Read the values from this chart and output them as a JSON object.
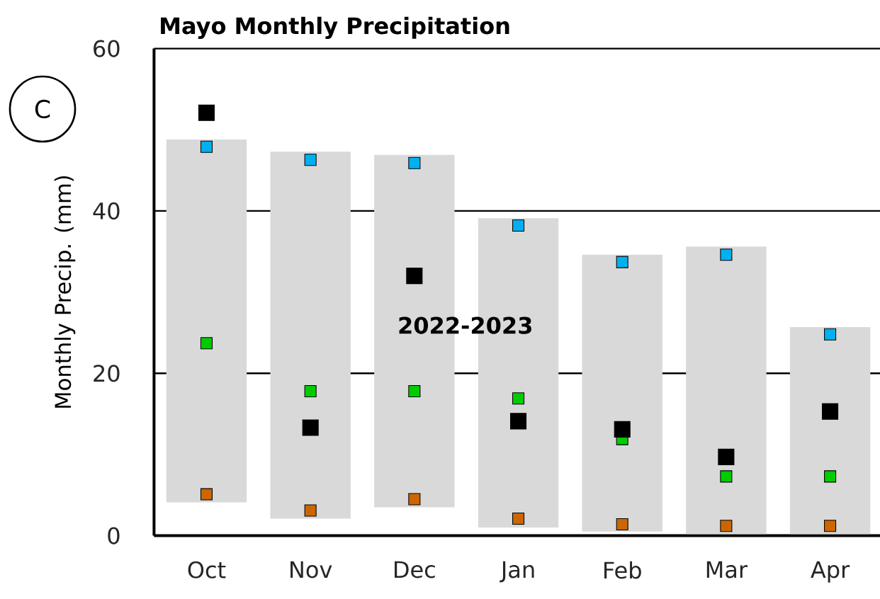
{
  "chart_data": {
    "type": "bar",
    "title": "Mayo Monthly Precipitation",
    "ylabel": "Monthly Precip. (mm)",
    "annotations": [
      "C"
    ],
    "categories": [
      "Oct",
      "Nov",
      "Dec",
      "Jan",
      "Feb",
      "Mar",
      "Apr"
    ],
    "ylim": [
      0,
      60
    ],
    "yticks": [
      0,
      20,
      40,
      60
    ],
    "grid": "y",
    "marker": "square",
    "series": [
      {
        "type": "bar",
        "color": "#d9d9d9",
        "base": [
          4.1,
          2.1,
          3.5,
          1.0,
          0.5,
          0.2,
          0.2
        ],
        "values": [
          44.7,
          45.2,
          43.4,
          38.1,
          34.1,
          35.4,
          25.5
        ]
      },
      {
        "type": "scatter",
        "color": "#00b0f0",
        "values": [
          47.9,
          46.3,
          45.9,
          38.2,
          33.7,
          34.6,
          24.8
        ]
      },
      {
        "type": "scatter",
        "color": "#00cc00",
        "values": [
          23.7,
          17.8,
          17.8,
          16.9,
          11.9,
          7.3,
          7.3
        ]
      },
      {
        "type": "scatter",
        "color": "#cc6600",
        "values": [
          5.1,
          3.1,
          4.5,
          2.1,
          1.4,
          1.2,
          1.2
        ]
      },
      {
        "type": "scatter",
        "name": "2022-2023",
        "color": "#000000",
        "values": [
          52.1,
          13.3,
          32.0,
          14.1,
          13.1,
          9.7,
          15.3
        ]
      }
    ]
  }
}
